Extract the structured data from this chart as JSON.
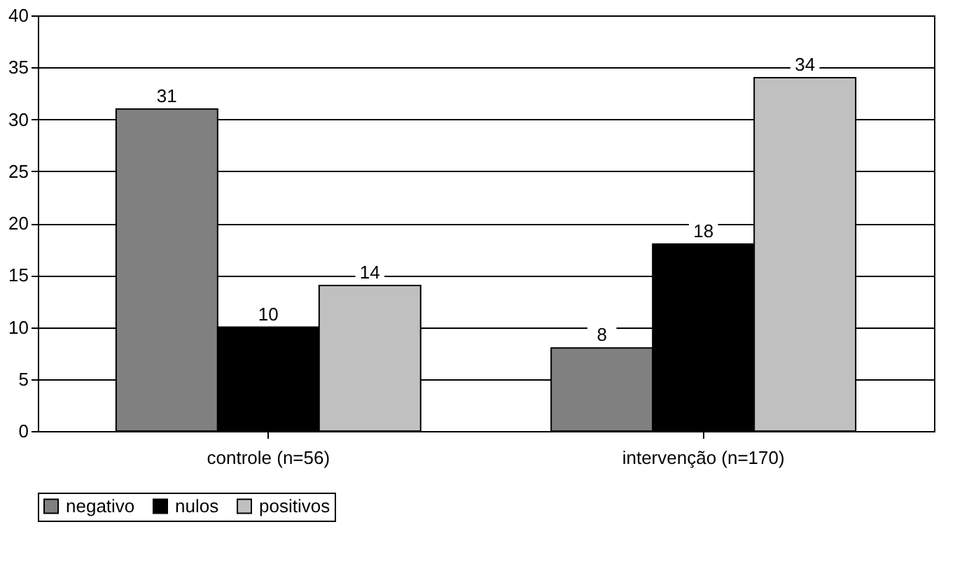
{
  "chart_data": {
    "type": "bar",
    "categories": [
      "controle (n=56)",
      "intervenção (n=170)"
    ],
    "series": [
      {
        "name": "negativo",
        "color": "#808080",
        "values": [
          31,
          8
        ]
      },
      {
        "name": "nulos",
        "color": "#000000",
        "values": [
          10,
          18
        ]
      },
      {
        "name": "positivos",
        "color": "#c0c0c0",
        "values": [
          14,
          34
        ]
      }
    ],
    "ylim": [
      0,
      40
    ],
    "yticks": [
      0,
      5,
      10,
      15,
      20,
      25,
      30,
      35,
      40
    ],
    "grid": "y",
    "legend": "bottom",
    "data_labels": true
  }
}
